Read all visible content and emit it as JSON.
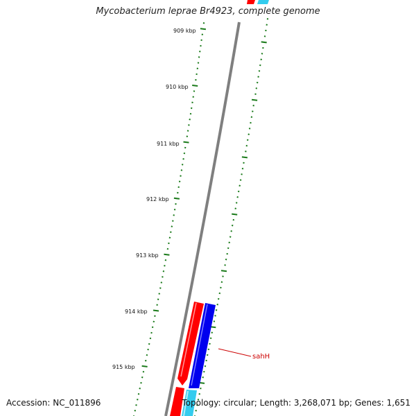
{
  "title": "Mycobacterium leprae Br4923, complete genome",
  "accession": "Accession: NC_011896",
  "summary": "Topology: circular; Length: 3,268,071 bp; Genes: 1,651",
  "colors": {
    "tick": "#1a7a1a",
    "backbone": "#808080",
    "gene_forward": "#ff0000",
    "gene_reverse": "#0000ee",
    "feature_cyan": "#33ccee",
    "label_red": "#cc0000"
  },
  "tick_labels": [
    "909 kbp",
    "910 kbp",
    "911 kbp",
    "912 kbp",
    "913 kbp",
    "914 kbp",
    "915 kbp"
  ],
  "gene_labels": [
    "sahH"
  ]
}
